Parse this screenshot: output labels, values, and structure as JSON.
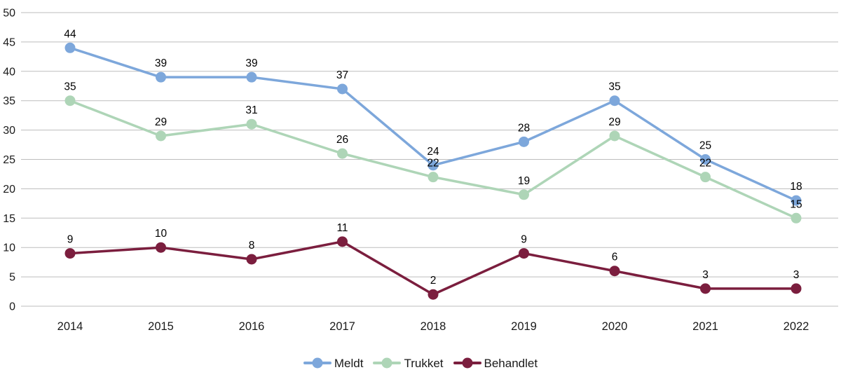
{
  "chart_data": {
    "type": "line",
    "title": "",
    "xlabel": "",
    "ylabel": "",
    "categories": [
      "2014",
      "2015",
      "2016",
      "2017",
      "2018",
      "2019",
      "2020",
      "2021",
      "2022"
    ],
    "series": [
      {
        "name": "Meldt",
        "color": "#7da7db",
        "values": [
          44,
          39,
          39,
          37,
          24,
          28,
          35,
          25,
          18
        ]
      },
      {
        "name": "Trukket",
        "color": "#aed5b7",
        "values": [
          35,
          29,
          31,
          26,
          22,
          19,
          29,
          22,
          15
        ]
      },
      {
        "name": "Behandlet",
        "color": "#7b1e3e",
        "values": [
          9,
          10,
          8,
          11,
          2,
          9,
          6,
          3,
          3
        ]
      }
    ],
    "ylim": [
      0,
      50
    ],
    "ytick_step": 5,
    "yticks": [
      0,
      5,
      10,
      15,
      20,
      25,
      30,
      35,
      40,
      45,
      50
    ],
    "grid": true,
    "gridline_color": "#bdbdbd",
    "tick_label_color": "#1a1a1a",
    "data_label_color": "#000000",
    "data_labels": true,
    "legend_position": "bottom"
  }
}
